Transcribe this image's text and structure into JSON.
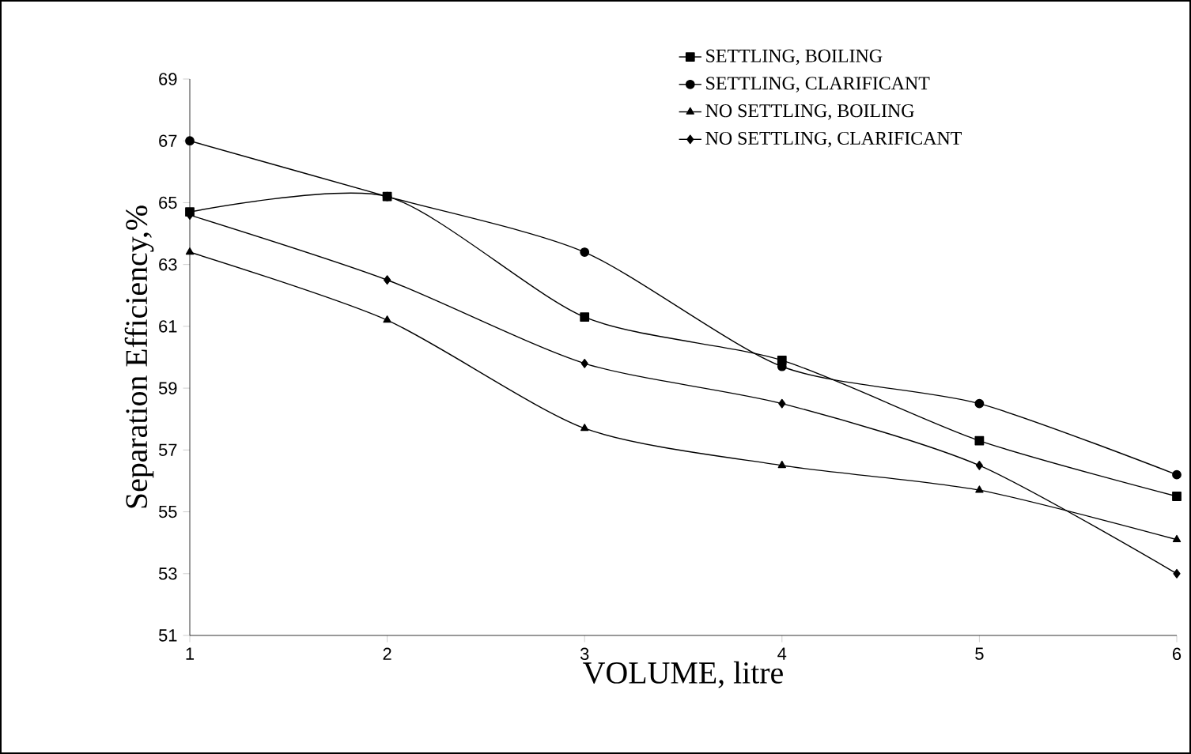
{
  "chart_data": {
    "type": "line",
    "xlabel": "VOLUME, litre",
    "ylabel": "Separation Efficiency,%",
    "x": [
      1,
      2,
      3,
      4,
      5,
      6
    ],
    "series": [
      {
        "name": "SETTLING, BOILING",
        "color": "#000000",
        "marker": "square",
        "values": [
          64.7,
          65.2,
          61.3,
          59.9,
          57.3,
          55.5
        ]
      },
      {
        "name": "SETTLING, CLARIFICANT",
        "color": "#000000",
        "marker": "circle",
        "values": [
          67.0,
          65.2,
          63.4,
          59.7,
          58.5,
          56.2
        ]
      },
      {
        "name": "NO SETTLING, BOILING",
        "color": "#000000",
        "marker": "triangle",
        "values": [
          63.4,
          61.2,
          57.7,
          56.5,
          55.7,
          54.1
        ]
      },
      {
        "name": "NO SETTLING, CLARIFICANT",
        "color": "#000000",
        "marker": "diamond",
        "values": [
          64.6,
          62.5,
          59.8,
          58.5,
          56.5,
          53.0
        ]
      }
    ],
    "xlim": [
      1,
      6
    ],
    "xticks": [
      1,
      2,
      3,
      4,
      5,
      6
    ],
    "ylim": [
      51,
      69
    ],
    "yticks": [
      51,
      53,
      55,
      57,
      59,
      61,
      63,
      65,
      67,
      69
    ],
    "grid": false,
    "legend": "top right",
    "line_style": "solid"
  }
}
